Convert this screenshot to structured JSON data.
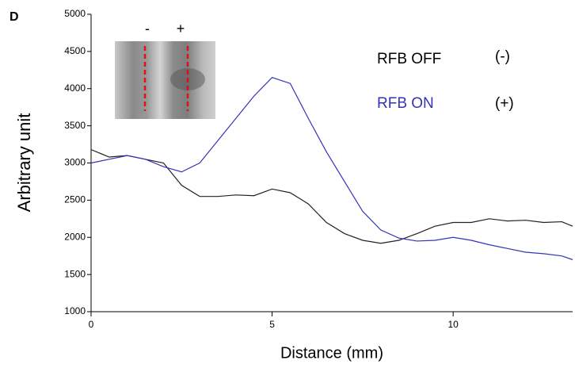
{
  "chart_data": {
    "type": "line",
    "panel_label": "D",
    "x_label": "Distance (mm)",
    "y_label": "Arbitrary unit",
    "x": [
      0,
      0.5,
      1,
      1.5,
      2,
      2.5,
      3,
      3.5,
      4,
      4.5,
      5,
      5.5,
      6,
      6.5,
      7,
      7.5,
      8,
      8.5,
      9,
      9.5,
      10,
      10.5,
      11,
      11.5,
      12,
      12.5,
      13,
      13.3
    ],
    "series": [
      {
        "name": "RFB OFF",
        "tag": "(-)",
        "color": "#222222",
        "values": [
          3180,
          3080,
          3100,
          3050,
          3000,
          2700,
          2550,
          2550,
          2570,
          2560,
          2650,
          2600,
          2450,
          2200,
          2050,
          1960,
          1920,
          1960,
          2050,
          2150,
          2200,
          2200,
          2250,
          2220,
          2230,
          2200,
          2210,
          2150
        ]
      },
      {
        "name": "RFB ON",
        "tag": "(+)",
        "color": "#3333bb",
        "values": [
          3000,
          3050,
          3100,
          3050,
          2950,
          2880,
          3000,
          3300,
          3600,
          3900,
          4150,
          4070,
          3600,
          3150,
          2750,
          2350,
          2100,
          1990,
          1950,
          1960,
          2000,
          1960,
          1900,
          1850,
          1800,
          1780,
          1750,
          1700
        ]
      }
    ],
    "inset_labels": [
      "-",
      "+"
    ],
    "xlim": [
      0,
      13.3
    ],
    "ylim": [
      1000,
      5000
    ],
    "xticks": [
      0,
      5,
      10
    ],
    "yticks": [
      1000,
      1500,
      2000,
      2500,
      3000,
      3500,
      4000,
      4500,
      5000
    ]
  }
}
